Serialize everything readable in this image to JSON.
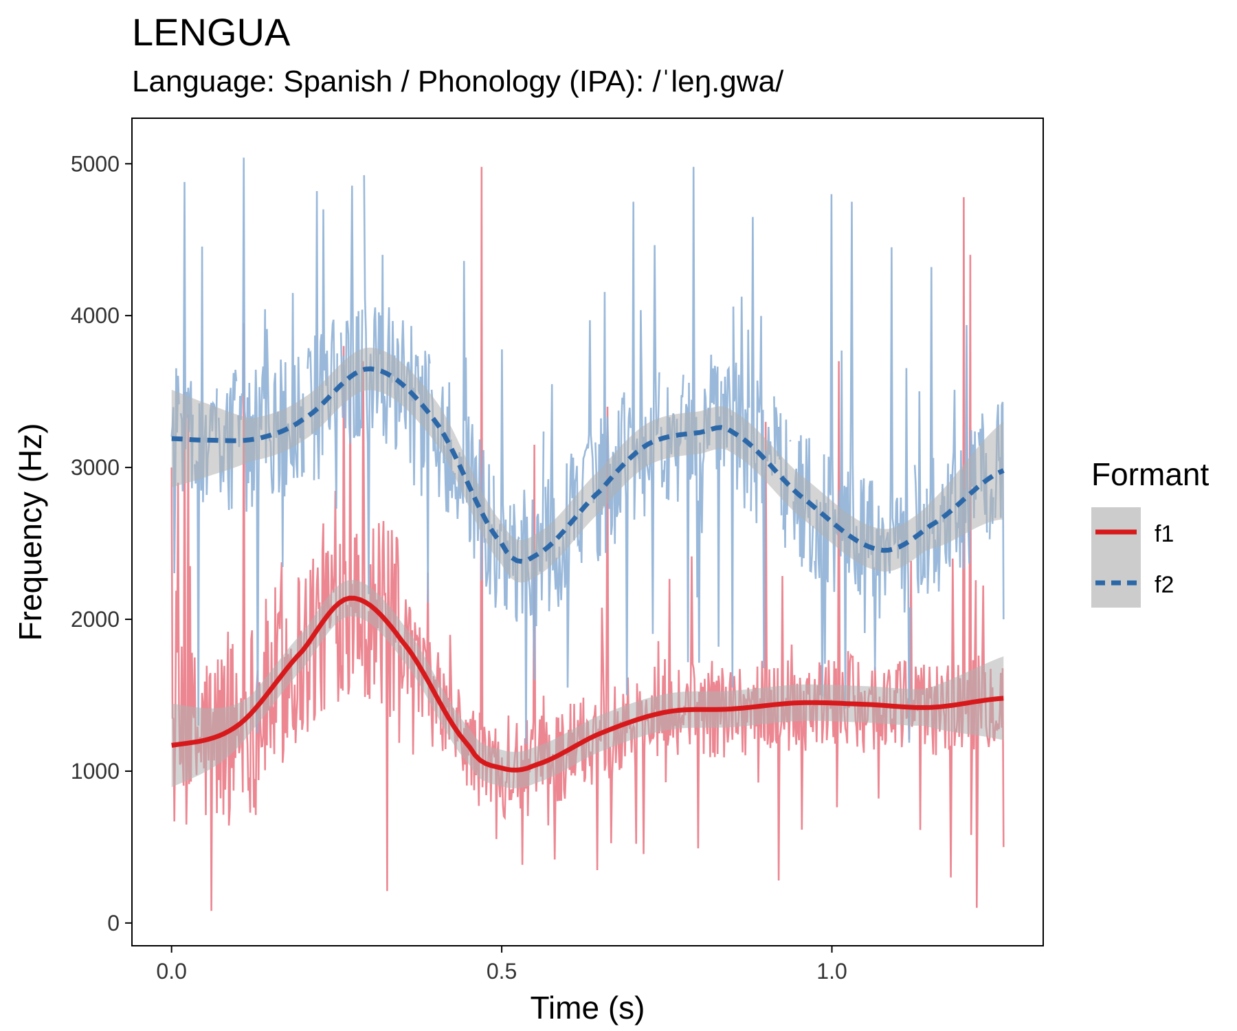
{
  "chart_data": {
    "type": "line",
    "title": "LENGUA",
    "subtitle": "Language: Spanish / Phonology (IPA): /ˈleŋ.gwa/",
    "xlabel": "Time (s)",
    "ylabel": "Frequency (Hz)",
    "xlim": [
      -0.06,
      1.32
    ],
    "ylim": [
      -150,
      5300
    ],
    "x_ticks": [
      "0.0",
      "0.5",
      "1.0"
    ],
    "y_ticks": [
      "0",
      "1000",
      "2000",
      "3000",
      "4000",
      "5000"
    ],
    "grid": false,
    "legend": {
      "title": "Formant",
      "placement": "right"
    },
    "colors": {
      "f1": "#d7191c",
      "f1_raw": "#ea7a86",
      "f2": "#2c67a8",
      "f2_raw": "#8fb1d6",
      "ci_band": "#b0b0b0"
    },
    "series": [
      {
        "name": "f1",
        "line_style": "solid",
        "smooth": {
          "x": [
            0.0,
            0.1,
            0.2,
            0.27,
            0.35,
            0.45,
            0.5,
            0.55,
            0.65,
            0.75,
            0.85,
            0.95,
            1.05,
            1.15,
            1.26
          ],
          "y": [
            1170,
            1300,
            1800,
            2140,
            1850,
            1170,
            1020,
            1040,
            1250,
            1390,
            1410,
            1450,
            1440,
            1420,
            1480
          ],
          "ci_halfwidth": 120
        },
        "raw_peaks": [
          {
            "x": 0.0,
            "y": 3000
          },
          {
            "x": 0.01,
            "y": 2900
          },
          {
            "x": 0.02,
            "y": 3500
          },
          {
            "x": 0.025,
            "y": 3350
          },
          {
            "x": 0.11,
            "y": 3950
          },
          {
            "x": 0.26,
            "y": 3800
          },
          {
            "x": 0.27,
            "y": 3600
          },
          {
            "x": 0.29,
            "y": 3700
          },
          {
            "x": 0.47,
            "y": 4980
          },
          {
            "x": 0.55,
            "y": 3150
          },
          {
            "x": 0.66,
            "y": 3400
          },
          {
            "x": 0.9,
            "y": 3300
          },
          {
            "x": 1.01,
            "y": 3700
          },
          {
            "x": 1.2,
            "y": 4780
          },
          {
            "x": 1.21,
            "y": 4400
          },
          {
            "x": 0.06,
            "y": 80
          },
          {
            "x": 0.02,
            "y": 250
          },
          {
            "x": 0.27,
            "y": 380
          },
          {
            "x": 0.55,
            "y": 350
          },
          {
            "x": 0.92,
            "y": 280
          },
          {
            "x": 1.18,
            "y": 300
          },
          {
            "x": 1.22,
            "y": 100
          },
          {
            "x": 1.26,
            "y": 500
          }
        ]
      },
      {
        "name": "f2",
        "line_style": "dashed",
        "smooth": {
          "x": [
            0.0,
            0.05,
            0.13,
            0.2,
            0.3,
            0.4,
            0.5,
            0.55,
            0.65,
            0.72,
            0.8,
            0.85,
            0.95,
            1.07,
            1.15,
            1.26
          ],
          "y": [
            3190,
            3180,
            3190,
            3320,
            3650,
            3300,
            2500,
            2420,
            2850,
            3150,
            3230,
            3230,
            2820,
            2460,
            2620,
            2980
          ],
          "ci_halfwidth": 140
        },
        "raw_peaks": [
          {
            "x": 0.02,
            "y": 4880
          },
          {
            "x": 0.11,
            "y": 5040
          },
          {
            "x": 0.22,
            "y": 4820
          },
          {
            "x": 0.23,
            "y": 4700
          },
          {
            "x": 0.32,
            "y": 4400
          },
          {
            "x": 0.7,
            "y": 4750
          },
          {
            "x": 0.79,
            "y": 4980
          },
          {
            "x": 0.88,
            "y": 4650
          },
          {
            "x": 1.0,
            "y": 4800
          },
          {
            "x": 1.03,
            "y": 4750
          },
          {
            "x": 1.09,
            "y": 4450
          },
          {
            "x": 1.15,
            "y": 4320
          },
          {
            "x": 0.04,
            "y": 1300
          },
          {
            "x": 0.13,
            "y": 1250
          },
          {
            "x": 0.55,
            "y": 1600
          },
          {
            "x": 0.6,
            "y": 1550
          },
          {
            "x": 0.69,
            "y": 1500
          },
          {
            "x": 0.85,
            "y": 1550
          },
          {
            "x": 1.0,
            "y": 1500
          },
          {
            "x": 1.26,
            "y": 2000
          }
        ]
      }
    ]
  }
}
